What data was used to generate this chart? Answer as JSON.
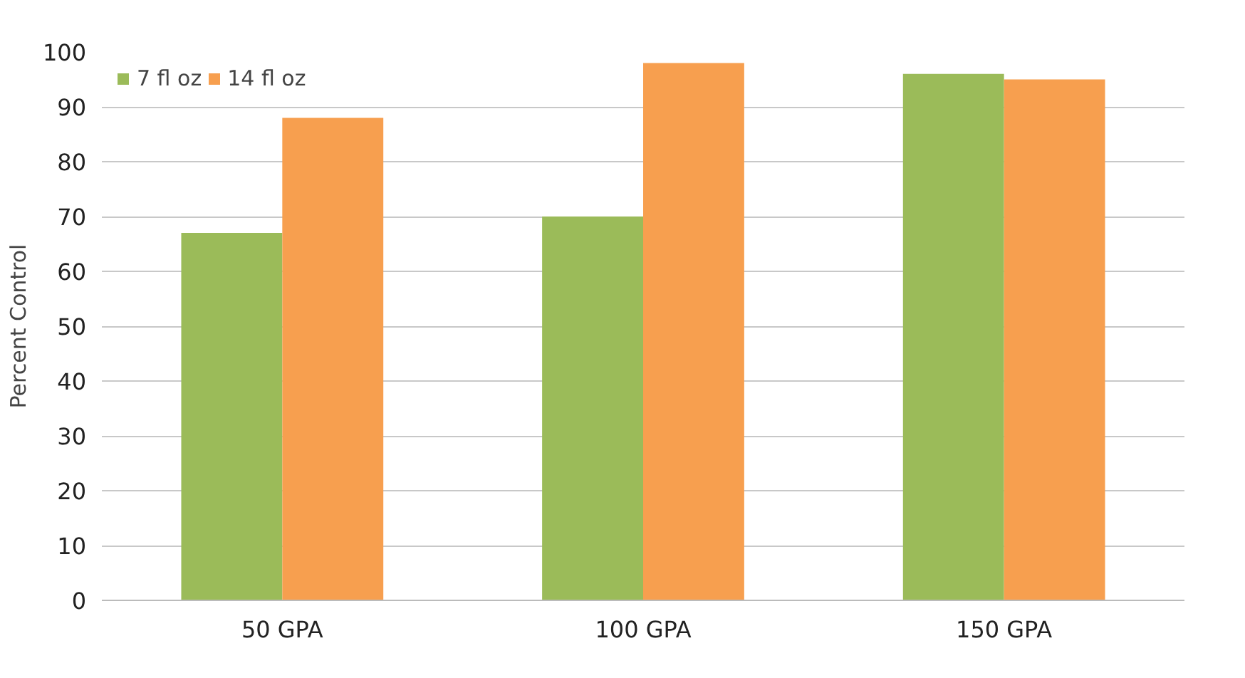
{
  "chart_data": {
    "type": "bar",
    "ylabel": "Percent Control",
    "categories": [
      "50 GPA",
      "100 GPA",
      "150 GPA"
    ],
    "series": [
      {
        "name": "7 fl oz",
        "color": "#9bbb59",
        "values": [
          67,
          70,
          96
        ]
      },
      {
        "name": "14 fl oz",
        "color": "#f79f4f",
        "values": [
          88,
          98,
          95
        ]
      }
    ],
    "ylim": [
      0,
      100
    ],
    "yticks": [
      0,
      10,
      20,
      30,
      40,
      50,
      60,
      70,
      80,
      90,
      100
    ],
    "grid": "y",
    "legend": "top left"
  }
}
